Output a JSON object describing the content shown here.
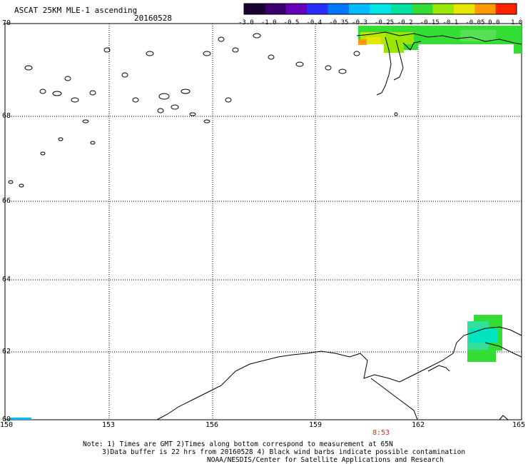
{
  "header": {
    "title": "ASCAT 25KM MLE-1 ascending",
    "date": "20160528"
  },
  "colorbar": {
    "labels": [
      "-3.0",
      "-1.0",
      "-0.5",
      "-0.4",
      "-0.35",
      "-0.3",
      "-0.25",
      "-0.2",
      "-0.15",
      "-0.1",
      "-0.05",
      "0.0",
      "1.0"
    ],
    "colors": [
      "#1a0033",
      "#3a0070",
      "#6600bb",
      "#2b2bff",
      "#0077ff",
      "#00bbff",
      "#00e5e5",
      "#00e0a0",
      "#33dd33",
      "#99e600",
      "#e6e600",
      "#ff9900",
      "#ff2200"
    ]
  },
  "axes": {
    "lon_ticks": [
      "150",
      "153",
      "156",
      "159",
      "162",
      "165"
    ],
    "lat_ticks": [
      "70",
      "68",
      "66",
      "64",
      "62",
      "60"
    ]
  },
  "overlay": {
    "time_label": "8:53"
  },
  "footer": {
    "line1": "Note: 1) Times are GMT 2)Times along bottom correspond to measurement at 65N",
    "line2": "3)Data buffer is 22 hrs from 20160528 4) Black wind barbs indicate possible contamination",
    "line3": "NOAA/NESDIS/Center for Satellite Applications and Research"
  }
}
